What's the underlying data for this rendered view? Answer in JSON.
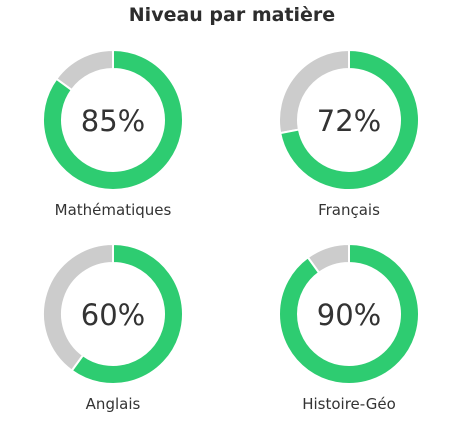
{
  "chart_data": {
    "type": "pie",
    "title": "Niveau par matière",
    "categories": [
      "Mathématiques",
      "Français",
      "Anglais",
      "Histoire-Géo"
    ],
    "values": [
      85,
      72,
      60,
      90
    ],
    "value_labels": [
      "85%",
      "72%",
      "60%",
      "90%"
    ],
    "max": 100,
    "colors": {
      "filled": "#2ecc71",
      "remaining": "#cccccc"
    }
  }
}
